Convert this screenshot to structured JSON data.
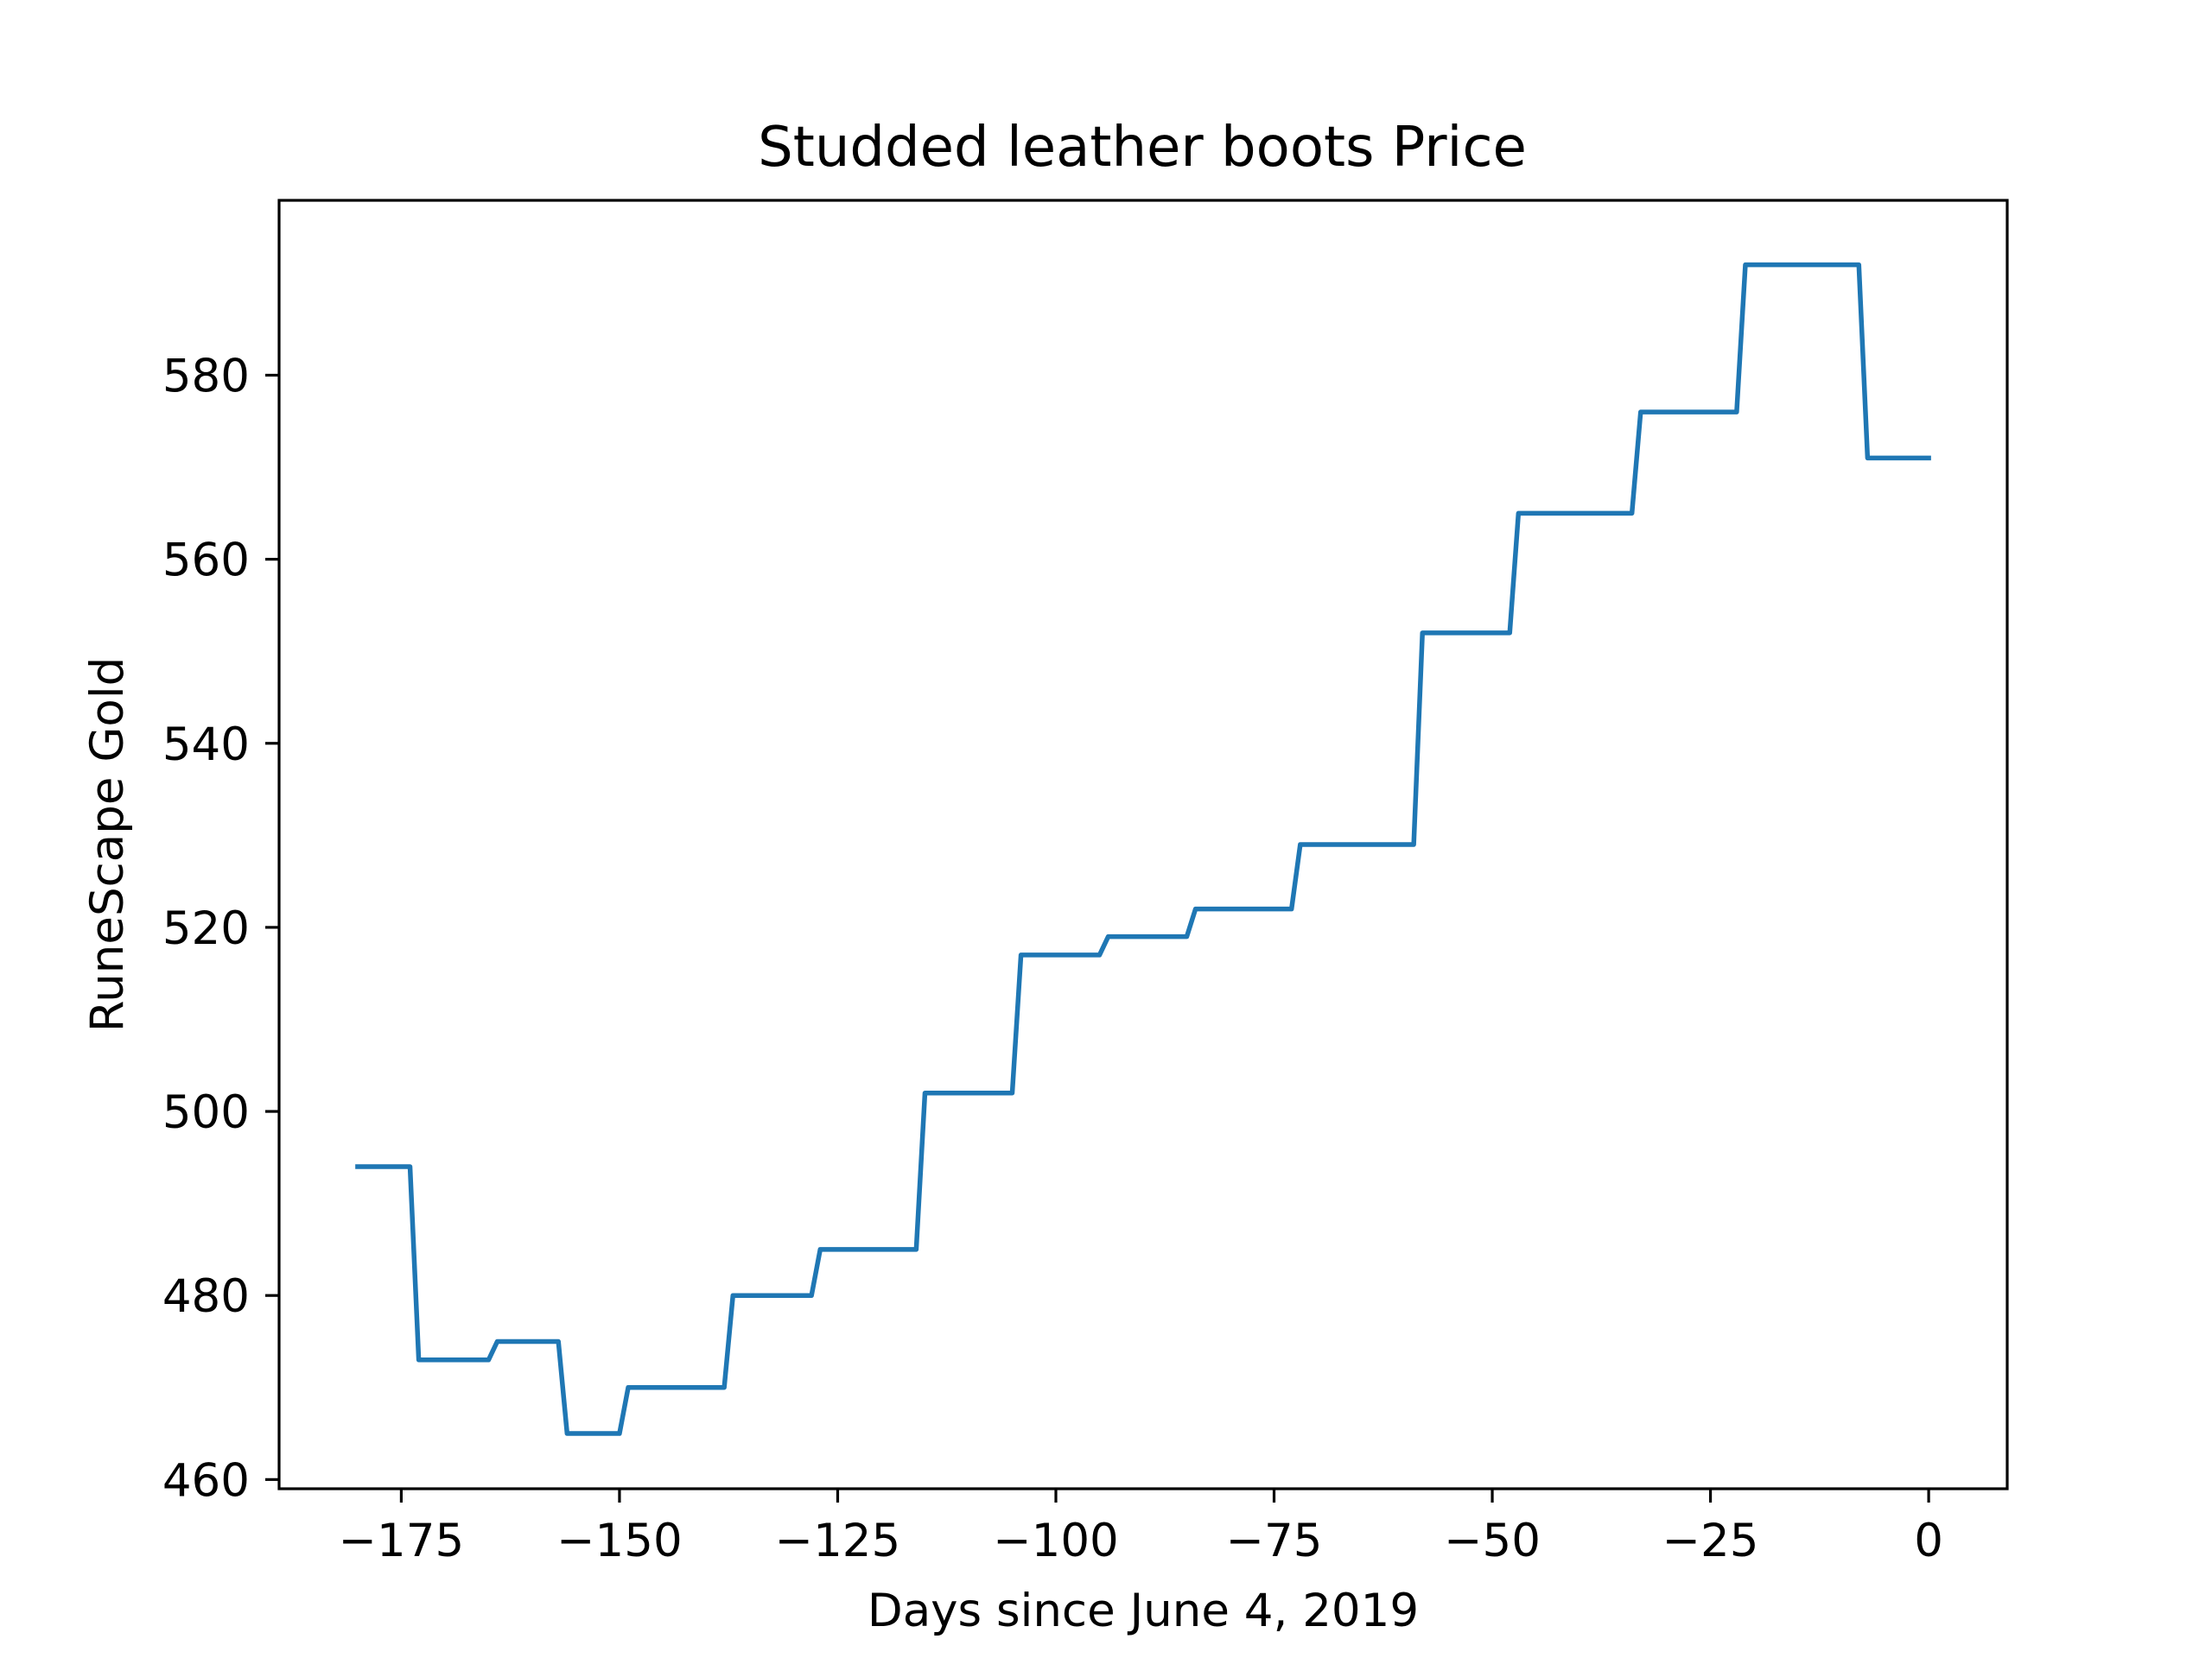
{
  "chart_data": {
    "type": "line",
    "title": "Studded leather boots Price",
    "xlabel": "Days since June 4, 2019",
    "ylabel": "RuneScape Gold",
    "xlim": [
      -189,
      9
    ],
    "ylim": [
      459,
      599
    ],
    "xticks": [
      -175,
      -150,
      -125,
      -100,
      -75,
      -50,
      -25,
      0
    ],
    "xtick_labels": [
      "−175",
      "−150",
      "−125",
      "−100",
      "−75",
      "−50",
      "−25",
      "0"
    ],
    "yticks": [
      460,
      480,
      500,
      520,
      540,
      560,
      580
    ],
    "ytick_labels": [
      "460",
      "480",
      "500",
      "520",
      "540",
      "560",
      "580"
    ],
    "grid": false,
    "legend": "none",
    "series": [
      {
        "color": "#1f77b4",
        "x": [
          -180,
          -174,
          -173,
          -165,
          -164,
          -157,
          -156,
          -150,
          -149,
          -138,
          -137,
          -128,
          -127,
          -116,
          -115,
          -105,
          -104,
          -95,
          -94,
          -85,
          -84,
          -73,
          -72,
          -59,
          -58,
          -48,
          -47,
          -34,
          -33,
          -22,
          -21,
          -8,
          -7,
          0
        ],
        "y": [
          494,
          494,
          473,
          473,
          475,
          475,
          465,
          465,
          470,
          470,
          480,
          480,
          485,
          485,
          502,
          502,
          517,
          517,
          519,
          519,
          522,
          522,
          529,
          529,
          552,
          552,
          565,
          565,
          576,
          576,
          592,
          592,
          571,
          571
        ]
      }
    ]
  }
}
